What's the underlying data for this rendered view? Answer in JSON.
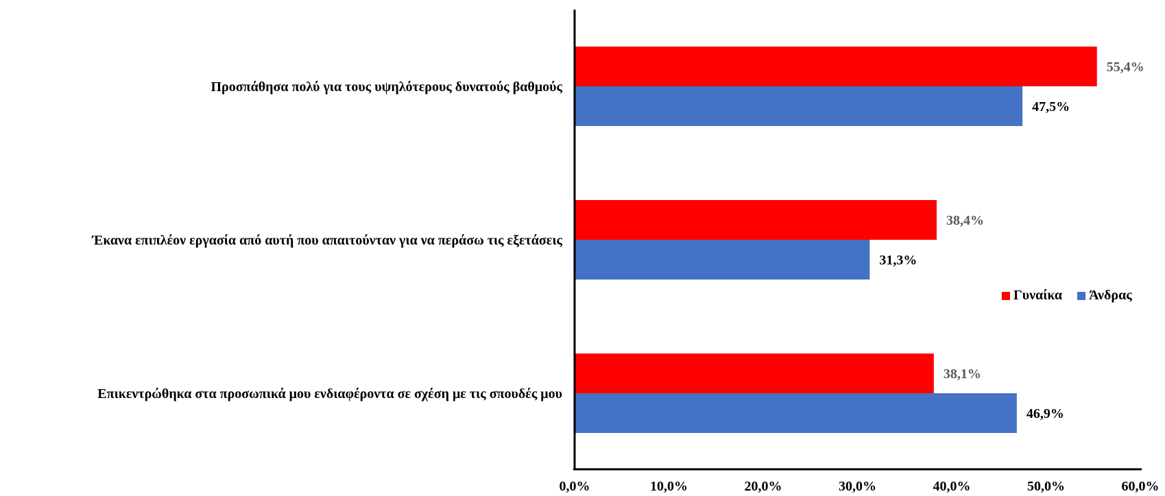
{
  "chart_data": {
    "type": "bar",
    "orientation": "horizontal",
    "categories": [
      "Προσπάθησα πολύ για τους υψηλότερους δυνατούς βαθμούς",
      "Έκανα επιπλέον εργασία από αυτή που απαιτούνταν για να περάσω τις εξετάσεις",
      "Επικεντρώθηκα στα προσωπικά μου ενδιαφέροντα σε σχέση με τις σπουδές μου"
    ],
    "series": [
      {
        "name": "Γυναίκα",
        "color": "#ff0000",
        "values": [
          55.4,
          38.4,
          38.1
        ],
        "labels": [
          "55,4%",
          "38,4%",
          "38,1%"
        ],
        "label_colors": [
          "#595959",
          "#595959",
          "#595959"
        ]
      },
      {
        "name": "Άνδρας",
        "color": "#4472c4",
        "values": [
          47.5,
          31.3,
          46.9
        ],
        "labels": [
          "47,5%",
          "31,3%",
          "46,9%"
        ],
        "label_colors": [
          "#000000",
          "#000000",
          "#000000"
        ]
      }
    ],
    "xlim": [
      0,
      60
    ],
    "xticks": [
      0,
      10,
      20,
      30,
      40,
      50,
      60
    ],
    "xtick_labels": [
      "0,0%",
      "10,0%",
      "20,0%",
      "30,0%",
      "40,0%",
      "50,0%",
      "60,0%"
    ],
    "legend": "right",
    "grid": false
  }
}
